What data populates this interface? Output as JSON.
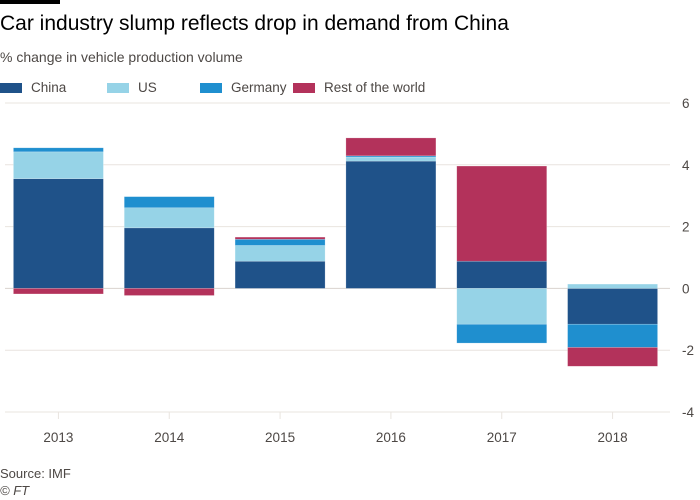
{
  "header": {
    "title": "Car industry slump reflects drop in demand from China",
    "subtitle": "% change in vehicle production volume"
  },
  "footer": {
    "source": "Source: IMF",
    "copyright": "© FT"
  },
  "colors": {
    "China": "#1f5289",
    "US": "#96d3e7",
    "Germany": "#1f8fcf",
    "Rest of the world": "#b3325b",
    "grid": "#e9e4df"
  },
  "chart_data": {
    "type": "bar",
    "stacked": true,
    "title": "Car industry slump reflects drop in demand from China",
    "subtitle": "% change in vehicle production volume",
    "xlabel": "",
    "ylabel": "",
    "categories": [
      "2013",
      "2014",
      "2015",
      "2016",
      "2017",
      "2018"
    ],
    "series": [
      {
        "name": "China",
        "values": [
          3.55,
          1.96,
          0.88,
          4.12,
          0.88,
          -1.16
        ]
      },
      {
        "name": "US",
        "values": [
          0.87,
          0.65,
          0.51,
          0.13,
          -1.16,
          0.14
        ]
      },
      {
        "name": "Germany",
        "values": [
          0.13,
          0.36,
          0.2,
          0.04,
          -0.61,
          -0.75
        ]
      },
      {
        "name": "Rest of the world",
        "values": [
          -0.18,
          -0.23,
          0.07,
          0.58,
          3.08,
          -0.61
        ]
      }
    ],
    "ylim": [
      -4,
      6
    ],
    "yticks": [
      6,
      4,
      2,
      0,
      -2,
      -4
    ],
    "y_axis_side": "right",
    "grid": true,
    "legend": {
      "placement": "top-left",
      "entries": [
        "China",
        "US",
        "Germany",
        "Rest of the world"
      ]
    },
    "source": "Source: IMF"
  }
}
